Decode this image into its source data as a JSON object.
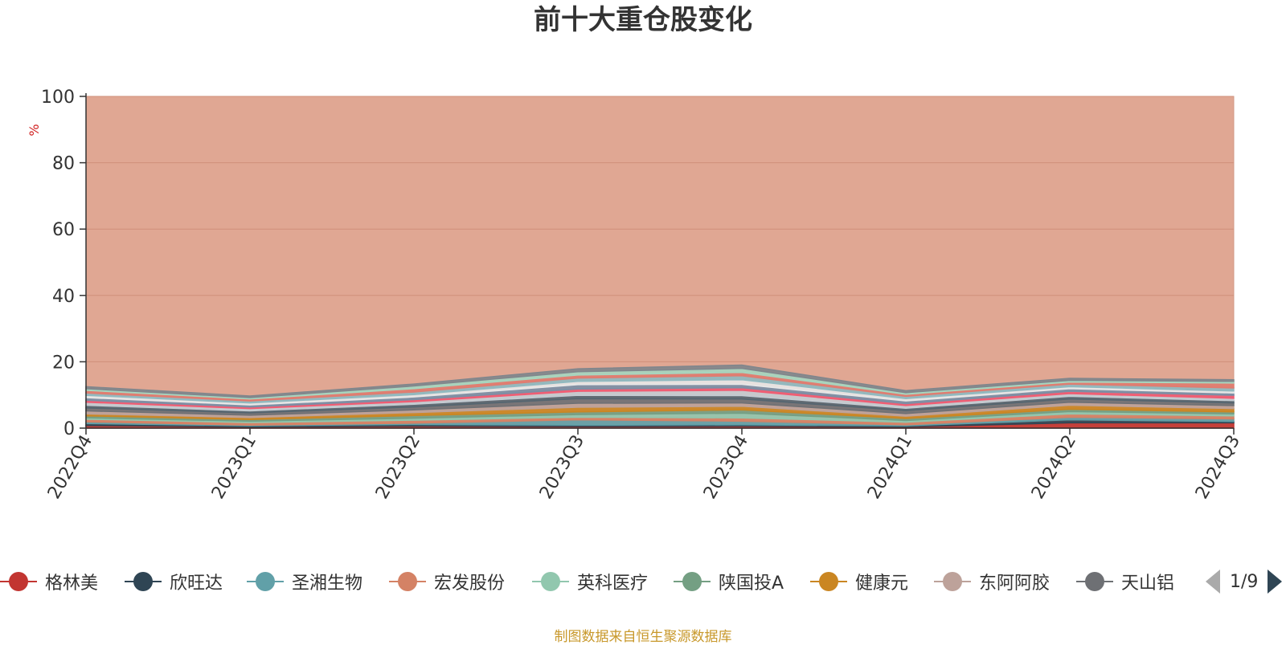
{
  "chart_data": {
    "type": "area",
    "title": "前十大重仓股变化",
    "ylabel": "%",
    "ylim": [
      0,
      100
    ],
    "yticks": [
      0,
      20,
      40,
      60,
      80,
      100
    ],
    "categories": [
      "2022Q4",
      "2023Q1",
      "2023Q2",
      "2023Q3",
      "2023Q4",
      "2024Q1",
      "2024Q2",
      "2024Q3"
    ],
    "stacked": true,
    "background_series": {
      "name": "",
      "color": "#e0a793",
      "values": [
        100,
        100,
        100,
        100,
        100,
        100,
        100,
        100
      ]
    },
    "series": [
      {
        "name": "格林美",
        "color": "#c23531",
        "values": [
          0.8,
          0.4,
          0.6,
          0.5,
          0.6,
          0.4,
          1.6,
          1.6
        ]
      },
      {
        "name": "欣旺达",
        "color": "#2f4554",
        "values": [
          0.6,
          0.3,
          0.5,
          0.4,
          0.4,
          0.3,
          0.9,
          0.4
        ]
      },
      {
        "name": "圣湘生物",
        "color": "#61a0a8",
        "values": [
          0.5,
          0.2,
          0.4,
          1.6,
          1.1,
          0.3,
          0.8,
          0.8
        ]
      },
      {
        "name": "宏发股份",
        "color": "#d48265",
        "values": [
          0.8,
          0.8,
          0.9,
          0.8,
          1.0,
          0.8,
          1.0,
          0.9
        ]
      },
      {
        "name": "英科医疗",
        "color": "#91c7ae",
        "values": [
          0.4,
          0.4,
          0.6,
          0.8,
          1.4,
          0.5,
          0.7,
          0.6
        ]
      },
      {
        "name": "陕国投A",
        "color": "#749f83",
        "values": [
          0.6,
          0.5,
          0.8,
          0.8,
          1.0,
          0.6,
          0.7,
          0.6
        ]
      },
      {
        "name": "健康元",
        "color": "#ca8622",
        "values": [
          0.6,
          0.6,
          0.9,
          1.4,
          1.1,
          0.7,
          1.2,
          1.0
        ]
      },
      {
        "name": "东阿阿胶",
        "color": "#bda29a",
        "values": [
          0.9,
          0.7,
          0.8,
          1.2,
          1.0,
          0.8,
          0.9,
          0.9
        ]
      },
      {
        "name": "天山铝业",
        "color": "#6e7074",
        "values": [
          0.9,
          0.7,
          0.9,
          1.4,
          1.2,
          0.9,
          1.0,
          0.8
        ]
      },
      {
        "name": "",
        "color": "#546570",
        "values": [
          0.8,
          0.6,
          0.8,
          1.0,
          1.0,
          0.7,
          0.8,
          0.7
        ]
      },
      {
        "name": "",
        "color": "#c4ccd3",
        "values": [
          0.9,
          0.7,
          0.8,
          1.2,
          1.6,
          0.8,
          0.8,
          0.7
        ]
      },
      {
        "name": "",
        "color": "#f05b72",
        "values": [
          0.6,
          0.5,
          0.6,
          0.7,
          0.8,
          0.6,
          0.7,
          0.9
        ]
      },
      {
        "name": "",
        "color": "#7a8fa6",
        "values": [
          0.8,
          0.6,
          0.8,
          1.3,
          1.0,
          0.8,
          0.8,
          0.7
        ]
      },
      {
        "name": "",
        "color": "#e8e8e8",
        "values": [
          0.7,
          0.6,
          0.7,
          1.0,
          1.4,
          0.7,
          0.6,
          0.6
        ]
      },
      {
        "name": "",
        "color": "#8fb9c0",
        "values": [
          0.7,
          0.6,
          0.8,
          1.0,
          1.2,
          0.7,
          0.8,
          0.9
        ]
      },
      {
        "name": "",
        "color": "#e07b6f",
        "values": [
          0.8,
          0.6,
          1.0,
          0.9,
          1.0,
          0.6,
          0.6,
          1.5
        ]
      },
      {
        "name": "",
        "color": "#a5d6c0",
        "values": [
          0.5,
          0.4,
          0.8,
          1.0,
          1.2,
          0.5,
          0.5,
          0.5
        ]
      },
      {
        "name": "",
        "color": "#80868c",
        "values": [
          0.6,
          0.5,
          0.6,
          0.9,
          1.0,
          0.6,
          0.6,
          0.5
        ]
      }
    ],
    "legend_position": "bottom",
    "grid": true
  },
  "legend": {
    "items": [
      {
        "label": "格林美",
        "color": "#c23531"
      },
      {
        "label": "欣旺达",
        "color": "#2f4554"
      },
      {
        "label": "圣湘生物",
        "color": "#61a0a8"
      },
      {
        "label": "宏发股份",
        "color": "#d48265"
      },
      {
        "label": "英科医疗",
        "color": "#91c7ae"
      },
      {
        "label": "陕国投A",
        "color": "#749f83"
      },
      {
        "label": "健康元",
        "color": "#ca8622"
      },
      {
        "label": "东阿阿胶",
        "color": "#bda29a"
      },
      {
        "label": "天山铝",
        "color": "#6e7074"
      }
    ],
    "page_indicator": "1/9"
  },
  "source_note": "制图数据来自恒生聚源数据库"
}
